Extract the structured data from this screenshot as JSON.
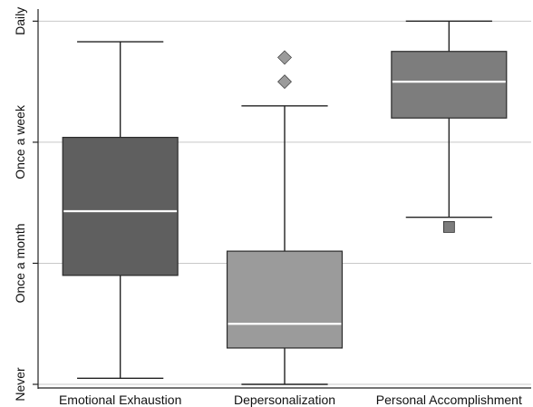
{
  "chart_data": {
    "type": "box",
    "title": "",
    "xlabel": "",
    "ylabel": "",
    "y_scale": {
      "levels": [
        "Never",
        "Once a month",
        "Once a week",
        "Daily"
      ],
      "values": [
        0,
        1,
        2,
        3
      ]
    },
    "ylim": [
      -0.03,
      3.1
    ],
    "grid": "horizontal",
    "legend": "none",
    "categories": [
      "Emotional Exhaustion",
      "Depersonalization",
      "Personal Accomplishment"
    ],
    "boxes": [
      {
        "name": "Emotional Exhaustion",
        "whisker_low": 0.05,
        "q1": 0.9,
        "median": 1.43,
        "q3": 2.04,
        "whisker_high": 2.83,
        "outliers": [],
        "fill": "#5f5f5f",
        "outlier_shape": "none"
      },
      {
        "name": "Depersonalization",
        "whisker_low": 0.0,
        "q1": 0.3,
        "median": 0.5,
        "q3": 1.1,
        "whisker_high": 2.3,
        "outliers": [
          2.5,
          2.7
        ],
        "fill": "#9b9b9b",
        "outlier_shape": "diamond"
      },
      {
        "name": "Personal Accomplishment",
        "whisker_low": 1.38,
        "q1": 2.2,
        "median": 2.5,
        "q3": 2.75,
        "whisker_high": 3.0,
        "outliers": [
          1.3
        ],
        "fill": "#7d7d7d",
        "outlier_shape": "square"
      }
    ],
    "colors": {
      "grid": "#c8c8c8",
      "axis": "#222222",
      "median_line": "#ffffff",
      "box_stroke": "#2a2a2a",
      "whisker": "#222222"
    }
  }
}
